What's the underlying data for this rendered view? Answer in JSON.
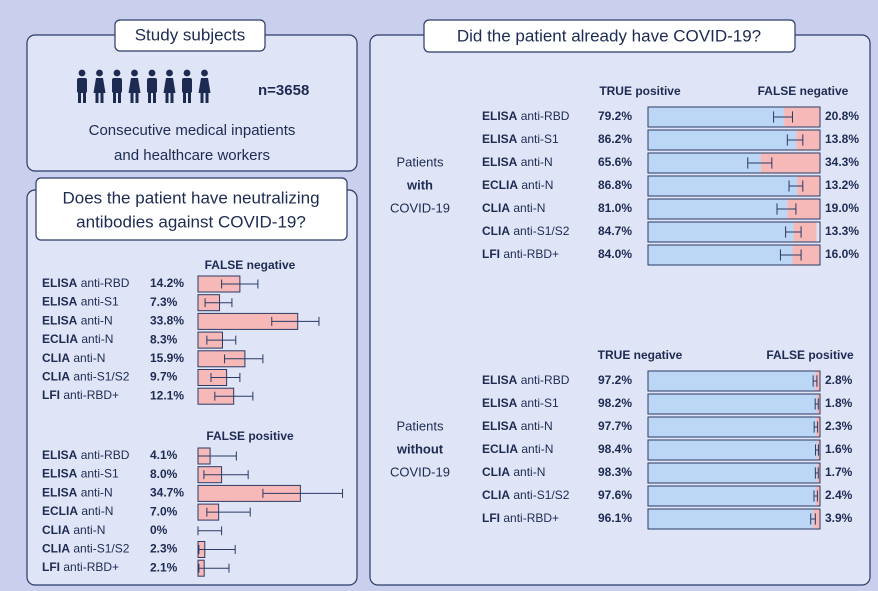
{
  "panels": {
    "subjects": {
      "title": "Study subjects",
      "n": "n=3658",
      "description": [
        "Consecutive medical inpatients",
        "and healthcare workers"
      ]
    },
    "neutralizing": {
      "title": [
        "Does the patient have neutralizing",
        "antibodies against COVID-19?"
      ]
    },
    "covid": {
      "title": "Did the patient already have COVID-19?",
      "with_label": [
        "Patients",
        "with",
        "COVID-19"
      ],
      "without_label": [
        "Patients",
        "without",
        "COVID-19"
      ]
    }
  },
  "chart_data": [
    {
      "type": "bar",
      "title": "FALSE negative",
      "color": "#f6b9b7",
      "categories": [
        {
          "method": "ELISA",
          "target": "anti-RBD"
        },
        {
          "method": "ELISA",
          "target": "anti-S1"
        },
        {
          "method": "ELISA",
          "target": "anti-N"
        },
        {
          "method": "ECLIA",
          "target": "anti-N"
        },
        {
          "method": "CLIA",
          "target": "anti-N"
        },
        {
          "method": "CLIA",
          "target": "anti-S1/S2"
        },
        {
          "method": "LFI",
          "target": "anti-RBD+"
        }
      ],
      "values": [
        14.2,
        7.3,
        33.8,
        8.3,
        15.9,
        9.7,
        12.1
      ],
      "value_labels": [
        "14.2%",
        "7.3%",
        "33.8%",
        "8.3%",
        "15.9%",
        "9.7%",
        "12.1%"
      ],
      "ci_lower": [
        8,
        2.4,
        25,
        3,
        9,
        4.4,
        5.7
      ],
      "ci_upper": [
        20.3,
        11.5,
        41,
        12.8,
        22,
        14.2,
        18.6
      ]
    },
    {
      "type": "bar",
      "title": "FALSE positive",
      "color": "#f6b9b7",
      "categories": [
        {
          "method": "ELISA",
          "target": "anti-RBD"
        },
        {
          "method": "ELISA",
          "target": "anti-S1"
        },
        {
          "method": "ELISA",
          "target": "anti-N"
        },
        {
          "method": "ECLIA",
          "target": "anti-N"
        },
        {
          "method": "CLIA",
          "target": "anti-N"
        },
        {
          "method": "CLIA",
          "target": "anti-S1/S2"
        },
        {
          "method": "LFI",
          "target": "anti-RBD+"
        }
      ],
      "values": [
        4.1,
        8.0,
        34.7,
        7.0,
        0,
        2.3,
        2.1
      ],
      "value_labels": [
        "4.1%",
        "8.0%",
        "34.7%",
        "7.0%",
        "0%",
        "2.3%",
        "2.1%"
      ],
      "ci_lower": [
        0,
        2,
        22,
        3,
        0,
        0.3,
        0.3
      ],
      "ci_upper": [
        13,
        17,
        49,
        17.7,
        8,
        12.6,
        10.5
      ]
    },
    {
      "type": "stacked_bar",
      "categories": [
        {
          "method": "ELISA",
          "target": "anti-RBD"
        },
        {
          "method": "ELISA",
          "target": "anti-S1"
        },
        {
          "method": "ELISA",
          "target": "anti-N"
        },
        {
          "method": "ECLIA",
          "target": "anti-N"
        },
        {
          "method": "CLIA",
          "target": "anti-N"
        },
        {
          "method": "CLIA",
          "target": "anti-S1/S2"
        },
        {
          "method": "LFI",
          "target": "anti-RBD+"
        }
      ],
      "series": [
        {
          "name": "TRUE positive",
          "color": "#bcd6f6",
          "values": [
            79.2,
            86.2,
            65.6,
            86.8,
            81.0,
            84.7,
            84.0
          ],
          "value_labels": [
            "79.2%",
            "86.2%",
            "65.6%",
            "86.8%",
            "81.0%",
            "84.7%",
            "84.0%"
          ],
          "ci_lower": [
            73,
            81,
            58,
            82,
            75,
            80,
            77
          ],
          "ci_upper": [
            84,
            90,
            72,
            90,
            86,
            89,
            89
          ]
        },
        {
          "name": "FALSE negative",
          "color": "#f6b9b7",
          "values": [
            20.8,
            13.8,
            34.3,
            13.2,
            19.0,
            13.3,
            16.0
          ],
          "value_labels": [
            "20.8%",
            "13.8%",
            "34.3%",
            "13.2%",
            "19.0%",
            "13.3%",
            "16.0%"
          ]
        }
      ]
    },
    {
      "type": "stacked_bar",
      "categories": [
        {
          "method": "ELISA",
          "target": "anti-RBD"
        },
        {
          "method": "ELISA",
          "target": "anti-S1"
        },
        {
          "method": "ELISA",
          "target": "anti-N"
        },
        {
          "method": "ECLIA",
          "target": "anti-N"
        },
        {
          "method": "CLIA",
          "target": "anti-N"
        },
        {
          "method": "CLIA",
          "target": "anti-S1/S2"
        },
        {
          "method": "LFI",
          "target": "anti-RBD+"
        }
      ],
      "series": [
        {
          "name": "TRUE negative",
          "color": "#bcd6f6",
          "values": [
            97.2,
            98.2,
            97.7,
            98.4,
            98.3,
            97.6,
            96.1
          ],
          "value_labels": [
            "97.2%",
            "98.2%",
            "97.7%",
            "98.4%",
            "98.3%",
            "97.6%",
            "96.1%"
          ],
          "ci_lower": [
            96,
            97.2,
            96.6,
            97.4,
            97.3,
            96.5,
            94.6
          ],
          "ci_upper": [
            98.2,
            99,
            98.6,
            99.1,
            99,
            98.5,
            97.3
          ]
        },
        {
          "name": "FALSE positive",
          "color": "#f6b9b7",
          "values": [
            2.8,
            1.8,
            2.3,
            1.6,
            1.7,
            2.4,
            3.9
          ],
          "value_labels": [
            "2.8%",
            "1.8%",
            "2.3%",
            "1.6%",
            "1.7%",
            "2.4%",
            "3.9%"
          ]
        }
      ]
    }
  ]
}
